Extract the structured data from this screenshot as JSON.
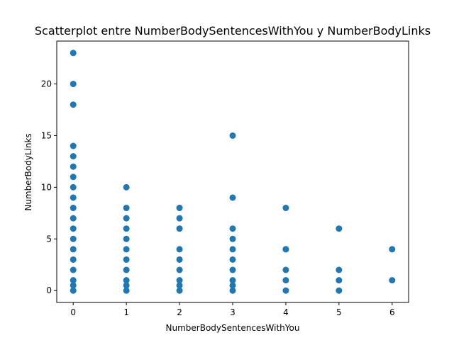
{
  "chart_data": {
    "type": "scatter",
    "title": "Scatterplot entre NumberBodySentencesWithYou y NumberBodyLinks",
    "xlabel": "NumberBodySentencesWithYou",
    "ylabel": "NumberBodyLinks",
    "xlim": [
      -0.31,
      6.31
    ],
    "ylim": [
      -1.15,
      24.15
    ],
    "xticks": [
      0,
      1,
      2,
      3,
      4,
      5,
      6
    ],
    "yticks": [
      0,
      5,
      10,
      15,
      20
    ],
    "grid": false,
    "marker_color": "#1f77b4",
    "series": [
      {
        "x": [
          0,
          0,
          0,
          0,
          0,
          0,
          0,
          0,
          0,
          0,
          0,
          0,
          0,
          0,
          0,
          0,
          0,
          0,
          0,
          1,
          1,
          1,
          1,
          1,
          1,
          1,
          1,
          1,
          1,
          1,
          2,
          2,
          2,
          2,
          2,
          2,
          2,
          2,
          2,
          3,
          3,
          3,
          3,
          3,
          3,
          3,
          3,
          3,
          3,
          4,
          4,
          4,
          4,
          4,
          4,
          5,
          5,
          5,
          5,
          6,
          6
        ],
        "y": [
          0,
          1,
          2,
          3,
          4,
          5,
          6,
          7,
          8,
          9,
          10,
          11,
          12,
          13,
          14,
          18,
          20,
          23,
          0.5,
          0,
          1,
          2,
          3,
          4,
          5,
          6,
          7,
          8,
          10,
          0.5,
          0,
          1,
          2,
          3,
          4,
          6,
          7,
          8,
          0.5,
          0,
          1,
          2,
          3,
          4,
          5,
          6,
          9,
          15,
          0.5,
          0,
          1,
          2,
          4,
          8,
          4,
          0,
          1,
          2,
          6,
          1,
          4
        ]
      }
    ]
  }
}
